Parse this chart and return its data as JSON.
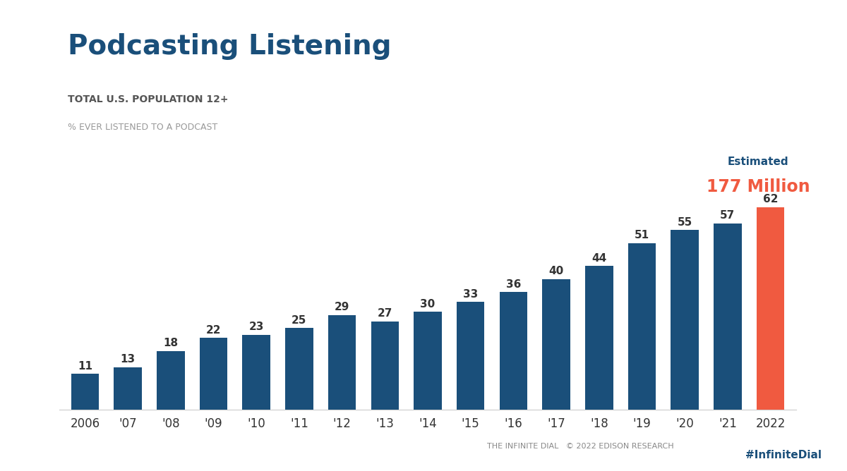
{
  "title": "Podcasting Listening",
  "subtitle1": "TOTAL U.S. POPULATION 12+",
  "subtitle2": "% EVER LISTENED TO A PODCAST",
  "years": [
    "2006",
    "'07",
    "'08",
    "'09",
    "'10",
    "'11",
    "'12",
    "'13",
    "'14",
    "'15",
    "'16",
    "'17",
    "'18",
    "'19",
    "'20",
    "'21",
    "2022"
  ],
  "values": [
    11,
    13,
    18,
    22,
    23,
    25,
    29,
    27,
    30,
    33,
    36,
    40,
    44,
    51,
    55,
    57,
    62
  ],
  "bar_colors": [
    "#1a4f7a",
    "#1a4f7a",
    "#1a4f7a",
    "#1a4f7a",
    "#1a4f7a",
    "#1a4f7a",
    "#1a4f7a",
    "#1a4f7a",
    "#1a4f7a",
    "#1a4f7a",
    "#1a4f7a",
    "#1a4f7a",
    "#1a4f7a",
    "#1a4f7a",
    "#1a4f7a",
    "#1a4f7a",
    "#f05a40"
  ],
  "title_color": "#1a4f7a",
  "subtitle1_color": "#555555",
  "subtitle2_color": "#999999",
  "estimated_label": "Estimated",
  "estimated_million": "177 Million",
  "estimated_color": "#f05a40",
  "estimated_label_color": "#1a4f7a",
  "background_color": "#ffffff",
  "bar_label_color": "#333333",
  "xlabel_color": "#333333",
  "footer_left": "THE INFINITE DIAL   © 2022 EDISON RESEARCH",
  "footer_right": "#InfiniteDial",
  "footer_color": "#888888",
  "footer_hashtag_color": "#1a4f7a",
  "ylim": [
    0,
    75
  ]
}
